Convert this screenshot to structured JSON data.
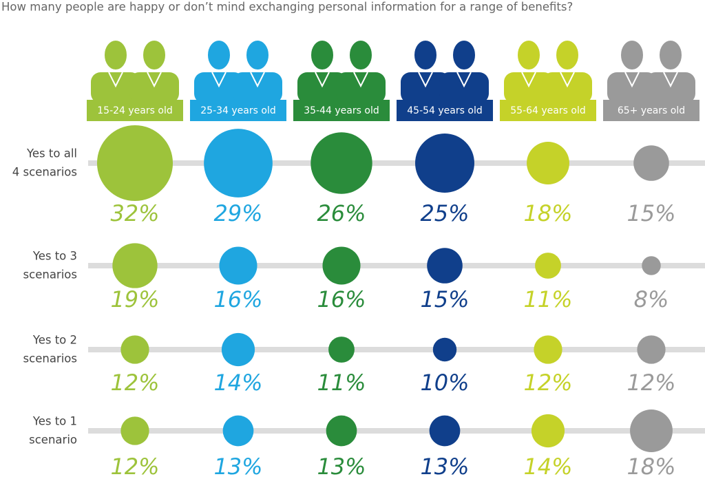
{
  "chart_data": {
    "type": "bubble-grid",
    "title": "How many people are happy or don’t mind exchanging personal information for a range of benefits?",
    "rows": [
      [
        "Yes to all",
        "4 scenarios"
      ],
      [
        "Yes to 3",
        "scenarios"
      ],
      [
        "Yes to 2",
        "scenarios"
      ],
      [
        "Yes to 1",
        "scenario"
      ]
    ],
    "series": [
      {
        "name": "15-24 years old",
        "color": "#9dc33b",
        "values": [
          32,
          19,
          12,
          12
        ],
        "value_labels": [
          "32%",
          "19%",
          "12%",
          "12%"
        ]
      },
      {
        "name": "25-34 years old",
        "color": "#1fa6e0",
        "values": [
          29,
          16,
          14,
          13
        ],
        "value_labels": [
          "29%",
          "16%",
          "14%",
          "13%"
        ]
      },
      {
        "name": "35-44 years old",
        "color": "#2a8c3b",
        "values": [
          26,
          16,
          11,
          13
        ],
        "value_labels": [
          "26%",
          "16%",
          "11%",
          "13%"
        ]
      },
      {
        "name": "45-54 years old",
        "color": "#103f8b",
        "values": [
          25,
          15,
          10,
          13
        ],
        "value_labels": [
          "25%",
          "15%",
          "10%",
          "13%"
        ]
      },
      {
        "name": "55-64 years old",
        "color": "#c5d229",
        "values": [
          18,
          11,
          12,
          14
        ],
        "value_labels": [
          "18%",
          "11%",
          "12%",
          "14%"
        ]
      },
      {
        "name": "65+ years old",
        "color": "#9a9a9a",
        "values": [
          15,
          8,
          12,
          18
        ],
        "value_labels": [
          "15%",
          "8%",
          "12%",
          "18%"
        ]
      }
    ]
  }
}
